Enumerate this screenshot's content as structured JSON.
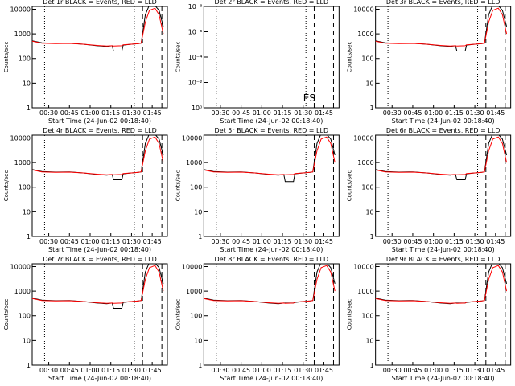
{
  "chart_data": [
    {
      "type": "line",
      "title": "Det 1r BLACK = Events, RED = LLD",
      "x_label": "Start Time (24-Jun-02 00:18:40)",
      "y_label": "Counts/sec",
      "log_y": true,
      "xlim": [
        "00:18",
        "01:56"
      ],
      "xticks": [
        "00:30",
        "00:45",
        "01:00",
        "01:15",
        "01:30",
        "01:45"
      ],
      "ylim": [
        1,
        13000
      ],
      "yticks": [
        1,
        10,
        100,
        1000,
        10000
      ],
      "vlines": [
        {
          "x": "00:27",
          "style": "dotted"
        },
        {
          "x": "01:32",
          "style": "dotted"
        },
        {
          "x": "01:38",
          "style": "dashed"
        },
        {
          "x": "01:52",
          "style": "dashed"
        }
      ],
      "x": [
        "00:18",
        "00:25",
        "00:35",
        "00:45",
        "00:55",
        "01:05",
        "01:12",
        "01:16",
        "01:17",
        "01:23",
        "01:24",
        "01:30",
        "01:35",
        "01:37",
        "01:40",
        "01:43",
        "01:47",
        "01:50",
        "01:53"
      ],
      "series": [
        {
          "name": "Events",
          "color": "#000000",
          "values": [
            520,
            430,
            410,
            420,
            380,
            330,
            310,
            330,
            200,
            200,
            350,
            380,
            400,
            420,
            6000,
            15000,
            14000,
            9000,
            2000
          ]
        },
        {
          "name": "LLD",
          "color": "#ff0000",
          "values": [
            500,
            420,
            400,
            410,
            380,
            340,
            320,
            330,
            320,
            330,
            360,
            380,
            400,
            420,
            3000,
            9000,
            11000,
            6000,
            1000
          ]
        }
      ]
    },
    {
      "type": "line",
      "title": "Det 2r BLACK = Events, RED = LLD",
      "x_label": "Start Time (24-Jun-02 00:18:40)",
      "y_label": "Counts/sec",
      "log_y": true,
      "xlim": [
        "00:18",
        "01:56"
      ],
      "xticks": [
        "00:30",
        "00:45",
        "01:00",
        "01:15",
        "01:30",
        "01:45"
      ],
      "ylim": [
        1,
        1e-08
      ],
      "yticks": [
        {
          "value": 1,
          "label": "10⁰"
        },
        {
          "value": 0.01,
          "label": "10⁻²"
        },
        {
          "value": 0.0001,
          "label": "10⁻⁴"
        },
        {
          "value": 1e-06,
          "label": "10⁻⁶"
        },
        {
          "value": 1e-08,
          "label": "10⁻⁸"
        }
      ],
      "vlines": [
        {
          "x": "00:27",
          "style": "dotted"
        },
        {
          "x": "01:32",
          "style": "dotted"
        },
        {
          "x": "01:38",
          "style": "dashed"
        },
        {
          "x": "01:52",
          "style": "dashed"
        }
      ],
      "annotation": "ES",
      "x": [],
      "series": []
    },
    {
      "type": "line",
      "title": "Det 3r BLACK = Events, RED = LLD",
      "x_label": "Start Time (24-Jun-02 00:18:40)",
      "y_label": "Counts/sec",
      "log_y": true,
      "xlim": [
        "00:18",
        "01:56"
      ],
      "xticks": [
        "00:30",
        "00:45",
        "01:00",
        "01:15",
        "01:30",
        "01:45"
      ],
      "ylim": [
        1,
        13000
      ],
      "yticks": [
        1,
        10,
        100,
        1000,
        10000
      ],
      "vlines": [
        {
          "x": "00:27",
          "style": "dotted"
        },
        {
          "x": "01:32",
          "style": "dotted"
        },
        {
          "x": "01:38",
          "style": "dashed"
        },
        {
          "x": "01:52",
          "style": "dashed"
        }
      ],
      "x": [
        "00:18",
        "00:25",
        "00:35",
        "00:45",
        "00:55",
        "01:05",
        "01:12",
        "01:16",
        "01:17",
        "01:23",
        "01:24",
        "01:30",
        "01:35",
        "01:37",
        "01:40",
        "01:43",
        "01:47",
        "01:50",
        "01:53"
      ],
      "series": [
        {
          "name": "Events",
          "color": "#000000",
          "values": [
            520,
            430,
            410,
            420,
            380,
            330,
            310,
            330,
            200,
            200,
            350,
            380,
            400,
            420,
            6000,
            15000,
            14000,
            9000,
            2000
          ]
        },
        {
          "name": "LLD",
          "color": "#ff0000",
          "values": [
            500,
            420,
            400,
            410,
            380,
            340,
            320,
            330,
            320,
            330,
            360,
            380,
            400,
            420,
            3000,
            9000,
            11000,
            6000,
            1000
          ]
        }
      ]
    },
    {
      "type": "line",
      "title": "Det 4r BLACK = Events, RED = LLD",
      "x_label": "Start Time (24-Jun-02 00:18:40)",
      "y_label": "Counts/sec",
      "log_y": true,
      "xlim": [
        "00:18",
        "01:56"
      ],
      "xticks": [
        "00:30",
        "00:45",
        "01:00",
        "01:15",
        "01:30",
        "01:45"
      ],
      "ylim": [
        1,
        13000
      ],
      "yticks": [
        1,
        10,
        100,
        1000,
        10000
      ],
      "vlines": [
        {
          "x": "00:27",
          "style": "dotted"
        },
        {
          "x": "01:32",
          "style": "dotted"
        },
        {
          "x": "01:38",
          "style": "dashed"
        },
        {
          "x": "01:52",
          "style": "dashed"
        }
      ],
      "x": [
        "00:18",
        "00:25",
        "00:35",
        "00:45",
        "00:55",
        "01:05",
        "01:12",
        "01:16",
        "01:17",
        "01:23",
        "01:24",
        "01:30",
        "01:35",
        "01:37",
        "01:40",
        "01:43",
        "01:47",
        "01:50",
        "01:53"
      ],
      "series": [
        {
          "name": "Events",
          "color": "#000000",
          "values": [
            520,
            430,
            410,
            420,
            380,
            330,
            310,
            330,
            200,
            200,
            350,
            380,
            400,
            420,
            6000,
            15000,
            14000,
            9000,
            2000
          ]
        },
        {
          "name": "LLD",
          "color": "#ff0000",
          "values": [
            500,
            420,
            400,
            410,
            380,
            340,
            320,
            330,
            320,
            330,
            360,
            380,
            400,
            420,
            3000,
            9000,
            11000,
            6000,
            1000
          ]
        }
      ]
    },
    {
      "type": "line",
      "title": "Det 5r BLACK = Events, RED = LLD",
      "x_label": "Start Time (24-Jun-02 00:18:40)",
      "y_label": "Counts/sec",
      "log_y": true,
      "xlim": [
        "00:18",
        "01:56"
      ],
      "xticks": [
        "00:30",
        "00:45",
        "01:00",
        "01:15",
        "01:30",
        "01:45"
      ],
      "ylim": [
        1,
        13000
      ],
      "yticks": [
        1,
        10,
        100,
        1000,
        10000
      ],
      "vlines": [
        {
          "x": "00:27",
          "style": "dotted"
        },
        {
          "x": "01:32",
          "style": "dotted"
        },
        {
          "x": "01:38",
          "style": "dashed"
        },
        {
          "x": "01:52",
          "style": "dashed"
        }
      ],
      "x": [
        "00:18",
        "00:25",
        "00:35",
        "00:45",
        "00:55",
        "01:05",
        "01:12",
        "01:16",
        "01:17",
        "01:23",
        "01:24",
        "01:30",
        "01:35",
        "01:37",
        "01:40",
        "01:43",
        "01:47",
        "01:50",
        "01:53"
      ],
      "series": [
        {
          "name": "Events",
          "color": "#000000",
          "values": [
            520,
            430,
            410,
            420,
            380,
            330,
            310,
            330,
            170,
            170,
            350,
            380,
            400,
            420,
            6000,
            15000,
            14000,
            9000,
            2000
          ]
        },
        {
          "name": "LLD",
          "color": "#ff0000",
          "values": [
            500,
            420,
            400,
            410,
            380,
            340,
            320,
            330,
            320,
            330,
            360,
            380,
            400,
            420,
            3000,
            9000,
            11000,
            6000,
            1000
          ]
        }
      ]
    },
    {
      "type": "line",
      "title": "Det 6r BLACK = Events, RED = LLD",
      "x_label": "Start Time (24-Jun-02 00:18:40)",
      "y_label": "Counts/sec",
      "log_y": true,
      "xlim": [
        "00:18",
        "01:56"
      ],
      "xticks": [
        "00:30",
        "00:45",
        "01:00",
        "01:15",
        "01:30",
        "01:45"
      ],
      "ylim": [
        1,
        13000
      ],
      "yticks": [
        1,
        10,
        100,
        1000,
        10000
      ],
      "vlines": [
        {
          "x": "00:27",
          "style": "dotted"
        },
        {
          "x": "01:32",
          "style": "dotted"
        },
        {
          "x": "01:38",
          "style": "dashed"
        },
        {
          "x": "01:52",
          "style": "dashed"
        }
      ],
      "x": [
        "00:18",
        "00:25",
        "00:35",
        "00:45",
        "00:55",
        "01:05",
        "01:12",
        "01:16",
        "01:17",
        "01:23",
        "01:24",
        "01:30",
        "01:35",
        "01:37",
        "01:40",
        "01:43",
        "01:47",
        "01:50",
        "01:53"
      ],
      "series": [
        {
          "name": "Events",
          "color": "#000000",
          "values": [
            520,
            430,
            410,
            420,
            380,
            330,
            310,
            330,
            200,
            200,
            350,
            380,
            400,
            420,
            6000,
            15000,
            14000,
            9000,
            2000
          ]
        },
        {
          "name": "LLD",
          "color": "#ff0000",
          "values": [
            500,
            420,
            400,
            410,
            380,
            340,
            320,
            330,
            320,
            330,
            360,
            380,
            400,
            420,
            3000,
            9000,
            11000,
            6000,
            1000
          ]
        }
      ]
    },
    {
      "type": "line",
      "title": "Det 7r BLACK = Events, RED = LLD",
      "x_label": "Start Time (24-Jun-02 00:18:40)",
      "y_label": "Counts/sec",
      "log_y": true,
      "xlim": [
        "00:18",
        "01:56"
      ],
      "xticks": [
        "00:30",
        "00:45",
        "01:00",
        "01:15",
        "01:30",
        "01:45"
      ],
      "ylim": [
        1,
        13000
      ],
      "yticks": [
        1,
        10,
        100,
        1000,
        10000
      ],
      "vlines": [
        {
          "x": "00:27",
          "style": "dotted"
        },
        {
          "x": "01:32",
          "style": "dotted"
        },
        {
          "x": "01:38",
          "style": "dashed"
        },
        {
          "x": "01:52",
          "style": "dashed"
        }
      ],
      "x": [
        "00:18",
        "00:25",
        "00:35",
        "00:45",
        "00:55",
        "01:05",
        "01:12",
        "01:16",
        "01:17",
        "01:23",
        "01:24",
        "01:30",
        "01:35",
        "01:37",
        "01:40",
        "01:43",
        "01:47",
        "01:50",
        "01:53"
      ],
      "series": [
        {
          "name": "Events",
          "color": "#000000",
          "values": [
            520,
            430,
            410,
            420,
            380,
            330,
            310,
            330,
            200,
            200,
            350,
            380,
            400,
            420,
            6000,
            15000,
            14000,
            9000,
            2000
          ]
        },
        {
          "name": "LLD",
          "color": "#ff0000",
          "values": [
            500,
            420,
            400,
            410,
            380,
            340,
            320,
            330,
            320,
            330,
            360,
            380,
            400,
            420,
            3000,
            9000,
            11000,
            6000,
            1000
          ]
        }
      ]
    },
    {
      "type": "line",
      "title": "Det 8r BLACK = Events, RED = LLD",
      "x_label": "Start Time (24-Jun-02 00:18:40)",
      "y_label": "Counts/sec",
      "log_y": true,
      "xlim": [
        "00:18",
        "01:56"
      ],
      "xticks": [
        "00:30",
        "00:45",
        "01:00",
        "01:15",
        "01:30",
        "01:45"
      ],
      "ylim": [
        1,
        13000
      ],
      "yticks": [
        1,
        10,
        100,
        1000,
        10000
      ],
      "vlines": [
        {
          "x": "00:27",
          "style": "dotted"
        },
        {
          "x": "01:32",
          "style": "dotted"
        },
        {
          "x": "01:38",
          "style": "dashed"
        },
        {
          "x": "01:52",
          "style": "dashed"
        }
      ],
      "x": [
        "00:18",
        "00:25",
        "00:35",
        "00:45",
        "00:55",
        "01:05",
        "01:12",
        "01:16",
        "01:17",
        "01:23",
        "01:24",
        "01:30",
        "01:35",
        "01:37",
        "01:40",
        "01:43",
        "01:47",
        "01:50",
        "01:53"
      ],
      "series": [
        {
          "name": "Events",
          "color": "#000000",
          "values": [
            520,
            430,
            410,
            420,
            380,
            330,
            310,
            330,
            330,
            330,
            350,
            380,
            400,
            420,
            6000,
            15000,
            14000,
            9000,
            2000
          ]
        },
        {
          "name": "LLD",
          "color": "#ff0000",
          "values": [
            500,
            420,
            400,
            410,
            380,
            340,
            320,
            330,
            320,
            330,
            360,
            380,
            400,
            420,
            3000,
            9000,
            11000,
            6000,
            1000
          ]
        }
      ]
    },
    {
      "type": "line",
      "title": "Det 9r BLACK = Events, RED = LLD",
      "x_label": "Start Time (24-Jun-02 00:18:40)",
      "y_label": "Counts/sec",
      "log_y": true,
      "xlim": [
        "00:18",
        "01:56"
      ],
      "xticks": [
        "00:30",
        "00:45",
        "01:00",
        "01:15",
        "01:30",
        "01:45"
      ],
      "ylim": [
        1,
        13000
      ],
      "yticks": [
        1,
        10,
        100,
        1000,
        10000
      ],
      "vlines": [
        {
          "x": "00:27",
          "style": "dotted"
        },
        {
          "x": "01:32",
          "style": "dotted"
        },
        {
          "x": "01:38",
          "style": "dashed"
        },
        {
          "x": "01:52",
          "style": "dashed"
        }
      ],
      "x": [
        "00:18",
        "00:25",
        "00:35",
        "00:45",
        "00:55",
        "01:05",
        "01:12",
        "01:16",
        "01:17",
        "01:23",
        "01:24",
        "01:30",
        "01:35",
        "01:37",
        "01:40",
        "01:43",
        "01:47",
        "01:50",
        "01:53"
      ],
      "series": [
        {
          "name": "Events",
          "color": "#000000",
          "values": [
            520,
            430,
            410,
            420,
            380,
            330,
            310,
            330,
            330,
            330,
            350,
            380,
            400,
            420,
            6000,
            15000,
            14000,
            9000,
            2000
          ]
        },
        {
          "name": "LLD",
          "color": "#ff0000",
          "values": [
            500,
            420,
            400,
            410,
            380,
            340,
            320,
            330,
            320,
            330,
            360,
            380,
            400,
            420,
            3000,
            9000,
            11000,
            6000,
            1000
          ]
        }
      ]
    }
  ]
}
